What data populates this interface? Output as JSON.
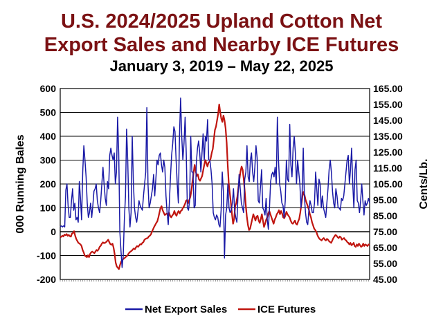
{
  "chart_data": {
    "type": "line",
    "title_line1": "U.S. 2024/2025 Upland Cotton Net",
    "title_line2": "Export Sales and Nearby ICE Futures",
    "subtitle": "January 3, 2019 – May 22, 2025",
    "ylabel_left": "000 Running Bales",
    "ylabel_right": "Cents/Lb.",
    "ylim_left": [
      -200,
      600
    ],
    "ylim_right": [
      45,
      165
    ],
    "yticks_left": [
      "600",
      "500",
      "400",
      "300",
      "200",
      "100",
      "0",
      "-100",
      "-200"
    ],
    "yticks_right": [
      "165.00",
      "155.00",
      "145.00",
      "135.00",
      "125.00",
      "115.00",
      "105.00",
      "95.00",
      "85.00",
      "75.00",
      "65.00",
      "55.00",
      "45.00"
    ],
    "grid": true,
    "legend_position": "bottom",
    "series": [
      {
        "name": "Net Export Sales",
        "axis": "left",
        "color": "#1a1aa6",
        "values": [
          20,
          25,
          20,
          25,
          20,
          175,
          200,
          110,
          60,
          60,
          130,
          180,
          90,
          120,
          50,
          60,
          40,
          210,
          140,
          50,
          250,
          360,
          300,
          230,
          120,
          60,
          80,
          120,
          60,
          110,
          170,
          180,
          200,
          130,
          100,
          80,
          130,
          200,
          270,
          200,
          140,
          110,
          210,
          180,
          320,
          350,
          320,
          300,
          330,
          200,
          250,
          480,
          330,
          0,
          -80,
          -150,
          -100,
          50,
          150,
          430,
          300,
          100,
          20,
          80,
          400,
          210,
          100,
          60,
          40,
          80,
          130,
          110,
          100,
          90,
          150,
          200,
          250,
          520,
          200,
          100,
          120,
          150,
          180,
          240,
          150,
          220,
          300,
          280,
          320,
          330,
          280,
          250,
          300,
          270,
          150,
          80,
          30,
          120,
          230,
          320,
          370,
          440,
          420,
          300,
          200,
          120,
          400,
          560,
          400,
          300,
          370,
          480,
          330,
          100,
          90,
          130,
          400,
          250,
          250,
          100,
          110,
          290,
          350,
          380,
          330,
          250,
          330,
          410,
          300,
          400,
          380,
          470,
          300,
          300,
          260,
          200,
          80,
          60,
          50,
          70,
          60,
          30,
          20,
          90,
          250,
          170,
          -110,
          70,
          100,
          200,
          100,
          80,
          90,
          120,
          180,
          90,
          60,
          40,
          150,
          240,
          180,
          120,
          100,
          80,
          220,
          250,
          360,
          230,
          210,
          300,
          330,
          250,
          210,
          270,
          360,
          310,
          130,
          120,
          190,
          260,
          100,
          90,
          70,
          140,
          50,
          10,
          100,
          210,
          240,
          250,
          230,
          270,
          200,
          480,
          300,
          200,
          170,
          120,
          110,
          60,
          130,
          300,
          220,
          210,
          450,
          280,
          230,
          350,
          400,
          330,
          200,
          300,
          250,
          200,
          100,
          160,
          350,
          150,
          80,
          40,
          30,
          90,
          130,
          110,
          80,
          80,
          120,
          250,
          180,
          110,
          220,
          200,
          100,
          150,
          100,
          80,
          60,
          120,
          180,
          260,
          300,
          250,
          170,
          120,
          100,
          180,
          150,
          100,
          100,
          90,
          140,
          130,
          150,
          200,
          250,
          300,
          320,
          200,
          260,
          350,
          200,
          100,
          260,
          300,
          130,
          120,
          80,
          130,
          200,
          130,
          70,
          130,
          110,
          120,
          140,
          120
        ]
      },
      {
        "name": "ICE Futures",
        "axis": "right",
        "color": "#c0150f",
        "values": [
          71.5,
          71.8,
          72.5,
          72.0,
          73.2,
          72.8,
          73.5,
          72.4,
          73.0,
          72.2,
          71.9,
          73.8,
          74.2,
          75.3,
          72.5,
          70.5,
          69.2,
          68.0,
          67.6,
          67.0,
          66.0,
          63.5,
          62.0,
          60.0,
          59.5,
          59.0,
          60.2,
          59.0,
          61.0,
          62.0,
          62.5,
          62.0,
          61.5,
          62.5,
          63.5,
          63.0,
          64.0,
          65.5,
          66.2,
          67.5,
          68.3,
          67.8,
          68.0,
          68.5,
          69.2,
          70.0,
          68.4,
          67.2,
          66.8,
          67.5,
          65.0,
          61.0,
          55.5,
          53.2,
          52.3,
          51.5,
          54.0,
          56.0,
          57.2,
          57.8,
          58.3,
          58.8,
          59.5,
          60.0,
          61.2,
          62.0,
          62.6,
          63.0,
          63.8,
          64.5,
          64.0,
          65.2,
          66.0,
          65.5,
          66.3,
          67.2,
          67.0,
          68.0,
          68.5,
          70.0,
          70.5,
          70.8,
          71.0,
          72.0,
          72.5,
          73.3,
          75.0,
          76.5,
          78.0,
          79.2,
          80.5,
          81.5,
          84.0,
          87.0,
          90.0,
          91.0,
          88.5,
          87.0,
          85.5,
          86.0,
          86.5,
          85.5,
          87.0,
          85.0,
          84.0,
          85.2,
          86.0,
          88.0,
          86.0,
          85.0,
          87.0,
          88.0,
          86.5,
          88.0,
          88.5,
          90.0,
          91.0,
          92.5,
          94.5,
          95.0,
          93.0,
          95.0,
          97.0,
          101.0,
          107.0,
          112.0,
          117.0,
          113.0,
          110.0,
          111.0,
          108.0,
          107.0,
          108.5,
          110.0,
          113.5,
          117.0,
          120.0,
          118.0,
          116.0,
          118.5,
          119.0,
          121.0,
          124.5,
          127.0,
          133.0,
          139.0,
          141.0,
          145.0,
          149.0,
          155.0,
          150.0,
          146.0,
          144.0,
          148.0,
          145.0,
          140.0,
          131.0,
          117.0,
          105.0,
          99.0,
          93.0,
          86.0,
          80.0,
          83.0,
          91.0,
          93.0,
          97.0,
          103.0,
          108.0,
          113.0,
          116.0,
          114.0,
          108.0,
          100.0,
          91.0,
          84.0,
          79.0,
          76.0,
          77.0,
          80.0,
          83.0,
          86.0,
          84.0,
          82.0,
          84.5,
          85.0,
          82.0,
          80.5,
          83.0,
          86.0,
          82.0,
          78.0,
          80.0,
          82.5,
          84.0,
          86.5,
          88.0,
          86.0,
          84.0,
          82.0,
          80.0,
          82.5,
          84.0,
          86.0,
          87.0,
          88.5,
          86.0,
          88.0,
          86.5,
          84.0,
          83.5,
          85.0,
          87.5,
          86.0,
          85.0,
          84.0,
          82.0,
          80.5,
          80.0,
          81.0,
          82.0,
          80.0,
          79.5,
          81.5,
          83.0,
          87.0,
          92.0,
          97.0,
          100.0,
          98.0,
          95.0,
          93.0,
          91.0,
          89.0,
          86.0,
          84.0,
          81.0,
          79.0,
          77.0,
          76.0,
          75.0,
          73.0,
          71.5,
          70.5,
          70.0,
          69.5,
          70.5,
          71.0,
          70.0,
          69.5,
          70.5,
          70.0,
          69.0,
          68.5,
          68.0,
          69.5,
          71.0,
          72.0,
          73.0,
          72.5,
          71.5,
          71.0,
          72.0,
          71.5,
          70.0,
          70.5,
          71.0,
          70.0,
          69.5,
          68.5,
          68.0,
          67.0,
          68.0,
          66.5,
          67.0,
          68.0,
          66.0,
          65.5,
          67.0,
          66.0,
          67.5,
          66.5,
          65.5,
          66.0,
          67.5,
          66.0,
          67.0,
          66.5,
          66.0,
          67.0,
          66.5
        ]
      }
    ]
  }
}
